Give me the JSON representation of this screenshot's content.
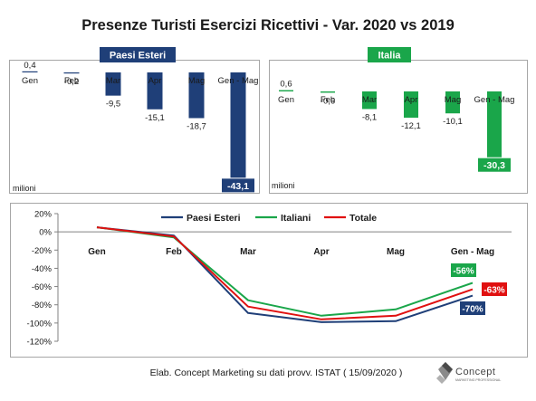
{
  "title": "Presenze Turisti Esercizi Ricettivi  - Var. 2020 vs 2019",
  "footer": "Elab. Concept Marketing su dati provv. ISTAT ( 15/09/2020 )",
  "logo": {
    "text": "Concept",
    "tagline": "MARKETING PROFESSIONAL"
  },
  "colors": {
    "esteri": "#1f3f78",
    "italia": "#1aa64a",
    "totale": "#e01010",
    "border": "#a6a6a6",
    "axis": "#808080"
  },
  "chart_data": [
    {
      "type": "bar",
      "badge": "Paesi Esteri",
      "unit": "milioni",
      "categories": [
        "Gen",
        "Feb",
        "Mar",
        "Apr",
        "Mag",
        "Gen - Mag"
      ],
      "values": [
        0.4,
        -0.2,
        -9.5,
        -15.1,
        -18.7,
        -43.1
      ],
      "labels": [
        "0,4",
        "-0,2",
        "-9,5",
        "-15,1",
        "-18,7",
        "-43,1"
      ]
    },
    {
      "type": "bar",
      "badge": "Italia",
      "unit": "milioni",
      "categories": [
        "Gen",
        "Feb",
        "Mar",
        "Apr",
        "Mag",
        "Gen - Mag"
      ],
      "values": [
        0.6,
        -0.6,
        -8.1,
        -12.1,
        -10.1,
        -30.3
      ],
      "labels": [
        "0,6",
        "-0,6",
        "-8,1",
        "-12,1",
        "-10,1",
        "-30,3"
      ]
    },
    {
      "type": "line",
      "categories": [
        "Gen",
        "Feb",
        "Mar",
        "Apr",
        "Mag",
        "Gen - Mag"
      ],
      "ylim": [
        -120,
        20
      ],
      "yticks": [
        "20%",
        "0%",
        "-20%",
        "-40%",
        "-60%",
        "-80%",
        "-100%",
        "-120%"
      ],
      "series": [
        {
          "name": "Paesi Esteri",
          "values": [
            5,
            -4,
            -89,
            -99,
            -98,
            -70
          ]
        },
        {
          "name": "Italiani",
          "values": [
            5,
            -6,
            -75,
            -92,
            -85,
            -56
          ]
        },
        {
          "name": "Totale",
          "values": [
            5,
            -5,
            -82,
            -96,
            -92,
            -63
          ]
        }
      ],
      "end_labels": [
        "-70%",
        "-56%",
        "-63%"
      ]
    }
  ]
}
